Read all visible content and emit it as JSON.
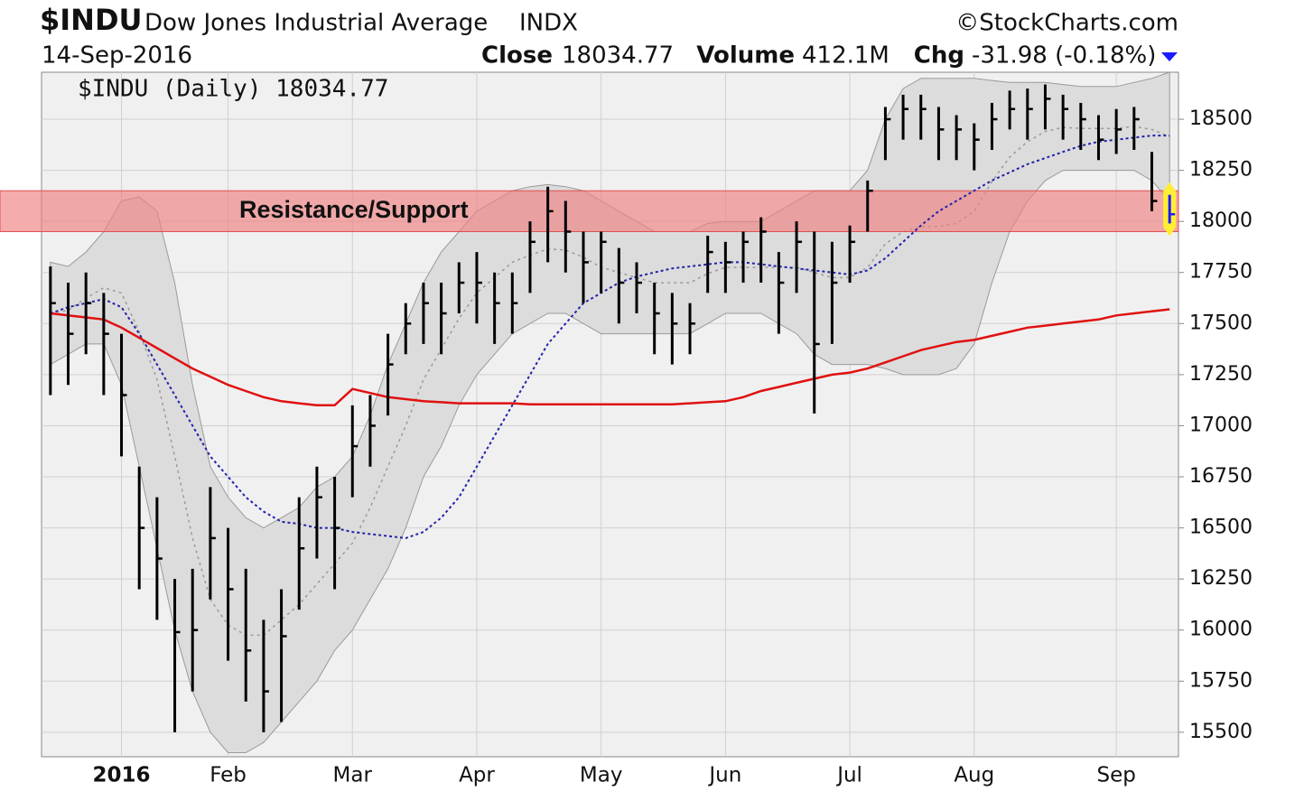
{
  "chart_data": {
    "type": "ohlc",
    "title": "$INDU",
    "subtitle": "Dow Jones Industrial Average",
    "exchange": "INDX",
    "source": "©StockCharts.com",
    "date": "14-Sep-2016",
    "close_label": "Close",
    "close_value": "18034.77",
    "volume_label": "Volume",
    "volume_value": "412.1M",
    "chg_label": "Chg",
    "chg_value": "-31.98 (-0.18%)",
    "legend": "$INDU (Daily) 18034.77",
    "categories": [
      null,
      null,
      null,
      null,
      "2016",
      null,
      null,
      null,
      null,
      null,
      "Feb",
      null,
      null,
      null,
      null,
      null,
      null,
      "Mar",
      null,
      null,
      null,
      null,
      null,
      null,
      "Apr",
      null,
      null,
      null,
      null,
      null,
      null,
      "May",
      null,
      null,
      null,
      null,
      null,
      null,
      "Jun",
      null,
      null,
      null,
      null,
      null,
      null,
      "Jul",
      null,
      null,
      null,
      null,
      null,
      null,
      "Aug",
      null,
      null,
      null,
      null,
      null,
      null,
      null,
      "Sep",
      null,
      null,
      null
    ],
    "ylim": [
      15380,
      18730
    ],
    "yticks": [
      15500,
      15750,
      16000,
      16250,
      16500,
      16750,
      17000,
      17250,
      17500,
      17750,
      18000,
      18250,
      18500
    ],
    "grid": true,
    "price": {
      "color": "#000000",
      "last_color": "#1a1aff",
      "high": [
        17780,
        17700,
        17750,
        17650,
        17450,
        16800,
        16650,
        16250,
        16300,
        16700,
        16500,
        16300,
        16050,
        16200,
        16650,
        16800,
        16750,
        17100,
        17150,
        17450,
        17600,
        17700,
        17700,
        17800,
        17850,
        17750,
        17750,
        18000,
        18170,
        18100,
        17950,
        17950,
        17870,
        17800,
        17700,
        17650,
        17600,
        17930,
        17900,
        17950,
        18020,
        17850,
        18000,
        17950,
        17900,
        17980,
        18200,
        18560,
        18620,
        18620,
        18560,
        18520,
        18480,
        18580,
        18640,
        18650,
        18670,
        18620,
        18580,
        18520,
        18550,
        18560,
        18340,
        18130
      ],
      "low": [
        17150,
        17200,
        17350,
        17150,
        16850,
        16200,
        16050,
        15500,
        15700,
        16150,
        15850,
        15650,
        15500,
        15550,
        16100,
        16350,
        16200,
        16650,
        16800,
        17050,
        17350,
        17400,
        17350,
        17550,
        17500,
        17400,
        17450,
        17650,
        17800,
        17750,
        17600,
        17650,
        17500,
        17550,
        17350,
        17300,
        17350,
        17650,
        17650,
        17700,
        17700,
        17450,
        17650,
        17060,
        17400,
        17700,
        17950,
        18300,
        18400,
        18400,
        18300,
        18300,
        18250,
        18350,
        18450,
        18400,
        18450,
        18400,
        18350,
        18300,
        18330,
        18350,
        18050,
        17990
      ],
      "close": [
        17600,
        17450,
        17600,
        17450,
        17150,
        16500,
        16350,
        15990,
        16000,
        16450,
        16200,
        15900,
        15700,
        15970,
        16400,
        16650,
        16500,
        16900,
        17000,
        17300,
        17500,
        17600,
        17550,
        17700,
        17700,
        17600,
        17600,
        17900,
        18050,
        17950,
        17800,
        17900,
        17700,
        17700,
        17550,
        17500,
        17500,
        17850,
        17800,
        17900,
        17950,
        17700,
        17900,
        17400,
        17700,
        17900,
        18150,
        18500,
        18550,
        18550,
        18450,
        18450,
        18400,
        18500,
        18550,
        18550,
        18600,
        18550,
        18500,
        18400,
        18450,
        18500,
        18100,
        18035
      ]
    },
    "bollinger": {
      "fill": "#dcdcdc",
      "edge": "#9a9a9a",
      "upper": [
        17800,
        17780,
        17850,
        17950,
        18100,
        18120,
        18050,
        17700,
        17200,
        16800,
        16650,
        16550,
        16500,
        16550,
        16600,
        16700,
        16750,
        16850,
        17050,
        17300,
        17500,
        17700,
        17850,
        17950,
        18050,
        18100,
        18150,
        18170,
        18180,
        18170,
        18150,
        18100,
        18050,
        18000,
        17950,
        17950,
        17950,
        17990,
        18000,
        18000,
        18000,
        18050,
        18100,
        18150,
        18150,
        18150,
        18250,
        18500,
        18650,
        18700,
        18700,
        18700,
        18700,
        18690,
        18680,
        18680,
        18680,
        18670,
        18660,
        18660,
        18660,
        18680,
        18700,
        18730
      ],
      "middle": [
        17550,
        17565,
        17625,
        17675,
        17650,
        17460,
        17225,
        16850,
        16450,
        16150,
        16025,
        15975,
        15975,
        16050,
        16125,
        16225,
        16325,
        16425,
        16600,
        16800,
        17000,
        17225,
        17375,
        17525,
        17650,
        17725,
        17800,
        17835,
        17865,
        17860,
        17825,
        17775,
        17750,
        17725,
        17700,
        17700,
        17700,
        17745,
        17775,
        17775,
        17775,
        17775,
        17775,
        17750,
        17725,
        17725,
        17775,
        17890,
        17950,
        17975,
        17975,
        17990,
        18050,
        18195,
        18315,
        18390,
        18440,
        18460,
        18455,
        18455,
        18455,
        18465,
        18450,
        18415
      ],
      "lower": [
        17300,
        17350,
        17400,
        17400,
        17200,
        16800,
        16400,
        16000,
        15700,
        15500,
        15400,
        15400,
        15450,
        15550,
        15650,
        15750,
        15900,
        16000,
        16150,
        16300,
        16500,
        16750,
        16900,
        17100,
        17250,
        17350,
        17450,
        17500,
        17550,
        17550,
        17500,
        17450,
        17450,
        17450,
        17450,
        17450,
        17450,
        17500,
        17550,
        17550,
        17550,
        17500,
        17450,
        17350,
        17300,
        17300,
        17300,
        17280,
        17250,
        17250,
        17250,
        17280,
        17400,
        17700,
        17950,
        18100,
        18200,
        18250,
        18250,
        18250,
        18250,
        18250,
        18200,
        18100
      ]
    },
    "overlays": [
      {
        "color": "#2222aa",
        "values": [
          17550,
          17580,
          17600,
          17620,
          17580,
          17450,
          17300,
          17150,
          17000,
          16850,
          16750,
          16650,
          16580,
          16530,
          16520,
          16500,
          16500,
          16480,
          16470,
          16460,
          16450,
          16480,
          16550,
          16650,
          16800,
          16950,
          17100,
          17250,
          17400,
          17500,
          17600,
          17650,
          17700,
          17730,
          17750,
          17770,
          17780,
          17790,
          17800,
          17800,
          17790,
          17780,
          17770,
          17760,
          17750,
          17740,
          17760,
          17820,
          17900,
          17980,
          18050,
          18100,
          18150,
          18200,
          18240,
          18280,
          18310,
          18340,
          18370,
          18390,
          18400,
          18410,
          18420,
          18420
        ]
      },
      {
        "color": "#e01010",
        "values": [
          17550,
          17540,
          17530,
          17520,
          17480,
          17430,
          17380,
          17330,
          17280,
          17240,
          17200,
          17170,
          17140,
          17120,
          17110,
          17100,
          17100,
          17180,
          17160,
          17140,
          17130,
          17120,
          17115,
          17110,
          17110,
          17110,
          17110,
          17105,
          17105,
          17105,
          17105,
          17105,
          17105,
          17105,
          17105,
          17105,
          17110,
          17115,
          17120,
          17140,
          17170,
          17190,
          17210,
          17230,
          17250,
          17260,
          17280,
          17310,
          17340,
          17370,
          17390,
          17410,
          17420,
          17440,
          17460,
          17480,
          17490,
          17500,
          17510,
          17520,
          17540,
          17550,
          17560,
          17570
        ]
      }
    ],
    "band": {
      "label": "Resistance/Support",
      "low": 17950,
      "high": 18150,
      "color": "#f08080"
    }
  }
}
